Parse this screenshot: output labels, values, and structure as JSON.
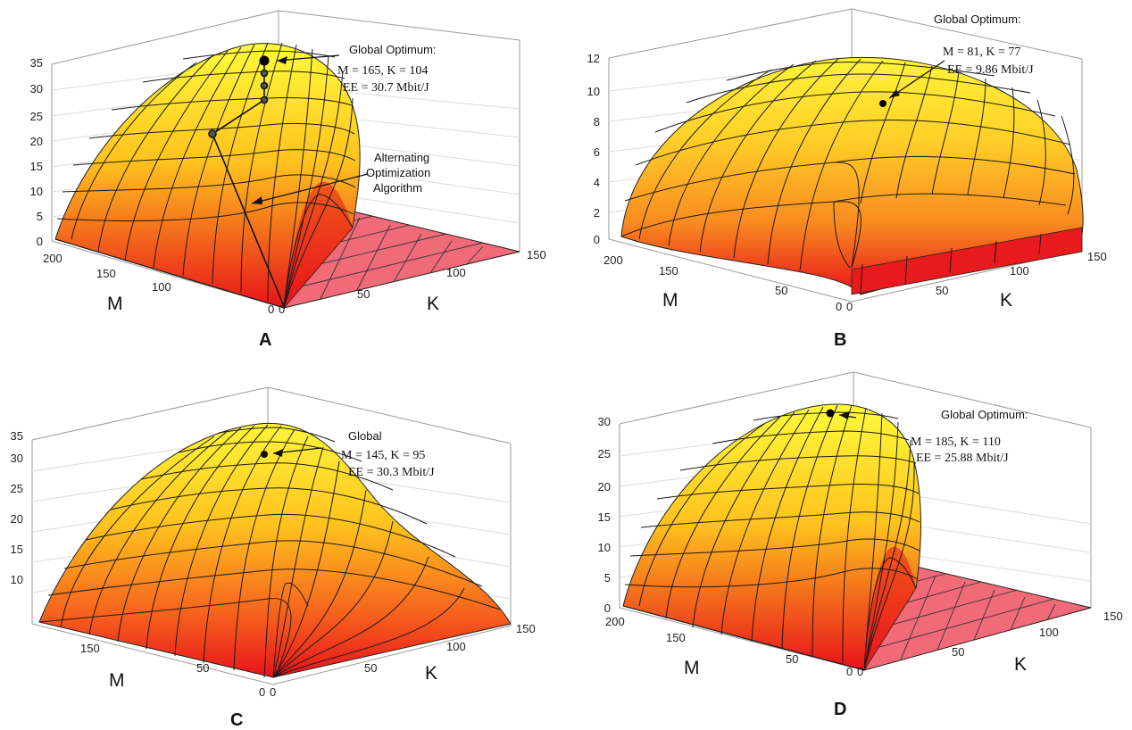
{
  "chart_data": [
    {
      "panel_label": "A",
      "type": "surface3d",
      "xlabel": "M",
      "ylabel": "K",
      "m_ticks": [
        "200",
        "150",
        "100",
        "0"
      ],
      "k_ticks": [
        "0",
        "50",
        "100",
        "150"
      ],
      "z_ticks": [
        "0",
        "5",
        "10",
        "15",
        "20",
        "25",
        "30",
        "35"
      ],
      "zlim": [
        0,
        35
      ],
      "optimum_text": "Global Optimum:",
      "optimum_line1": "M = 165, K = 104",
      "optimum_line2": "EE = 30.7 Mbit/J",
      "optimum": {
        "M": 165,
        "K": 104,
        "EE": 30.7
      },
      "algorithm_line1": "Alternating",
      "algorithm_line2": "Optimization",
      "algorithm_line3": "Algorithm"
    },
    {
      "panel_label": "B",
      "type": "surface3d",
      "xlabel": "M",
      "ylabel": "K",
      "m_ticks": [
        "200",
        "150",
        "50",
        "0"
      ],
      "k_ticks": [
        "0",
        "50",
        "100",
        "150"
      ],
      "z_ticks": [
        "0",
        "2",
        "4",
        "6",
        "8",
        "10",
        "12"
      ],
      "zlim": [
        0,
        12
      ],
      "optimum_text": "Global Optimum:",
      "optimum_line1": "M = 81, K = 77",
      "optimum_line2": "EE = 9.86 Mbit/J",
      "optimum": {
        "M": 81,
        "K": 77,
        "EE": 9.86
      }
    },
    {
      "panel_label": "C",
      "type": "surface3d",
      "xlabel": "M",
      "ylabel": "K",
      "m_ticks": [
        "150",
        "50",
        "0"
      ],
      "k_ticks": [
        "0",
        "50",
        "100",
        "150"
      ],
      "z_ticks": [
        "10",
        "15",
        "20",
        "25",
        "30",
        "35"
      ],
      "zlim": [
        0,
        35
      ],
      "optimum_text": "Global",
      "optimum_line1": "M = 145, K = 95",
      "optimum_line2": "EE = 30.3 Mbit/J",
      "optimum": {
        "M": 145,
        "K": 95,
        "EE": 30.3
      }
    },
    {
      "panel_label": "D",
      "type": "surface3d",
      "xlabel": "M",
      "ylabel": "K",
      "m_ticks": [
        "200",
        "150",
        "50",
        "0"
      ],
      "k_ticks": [
        "0",
        "50",
        "100",
        "150"
      ],
      "z_ticks": [
        "0",
        "5",
        "10",
        "15",
        "20",
        "25",
        "30"
      ],
      "zlim": [
        0,
        30
      ],
      "optimum_text": "Global Optimum:",
      "optimum_line1": "M = 185, K = 110",
      "optimum_line2": "EE = 25.88 Mbit/J",
      "optimum": {
        "M": 185,
        "K": 110,
        "EE": 25.88
      }
    }
  ],
  "colors": {
    "peak": "#fffb3a",
    "mid": "#ffb21c",
    "base": "#e8121a",
    "floor": "#f05a68",
    "mesh": "#1a1a1a"
  }
}
